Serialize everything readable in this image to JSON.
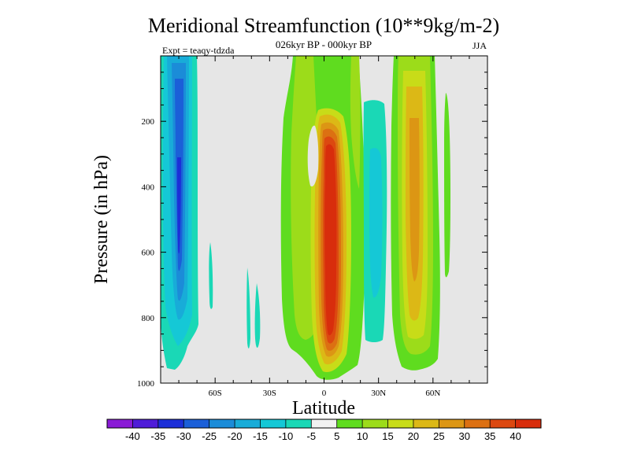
{
  "chart_data": {
    "type": "filled-contour",
    "title": "Meridional Streamfunction (10**9kg/m-2)",
    "subtitle": "026kyr BP - 000kyr BP",
    "experiment": "Expt = teaqy-tdzda",
    "season": "JJA",
    "xlabel": "Latitude",
    "ylabel": "Pressure (in hPa)",
    "xlim": [
      -90,
      90
    ],
    "ylim": [
      1000,
      0
    ],
    "x_ticks": [
      {
        "value": -60,
        "label": "60S"
      },
      {
        "value": -30,
        "label": "30S"
      },
      {
        "value": 0,
        "label": "0"
      },
      {
        "value": 30,
        "label": "30N"
      },
      {
        "value": 60,
        "label": "60N"
      }
    ],
    "y_ticks": [
      {
        "value": 200,
        "label": "200"
      },
      {
        "value": 400,
        "label": "400"
      },
      {
        "value": 600,
        "label": "600"
      },
      {
        "value": 800,
        "label": "800"
      },
      {
        "value": 1000,
        "label": "1000"
      }
    ],
    "background_color": "#e6e6e6",
    "colorbar": {
      "levels": [
        "-40",
        "-35",
        "-30",
        "-25",
        "-20",
        "-15",
        "-10",
        "-5",
        "5",
        "10",
        "15",
        "20",
        "25",
        "30",
        "35",
        "40"
      ],
      "colors": [
        "#8a1bd6",
        "#4f1cd8",
        "#1c2fd8",
        "#1b5fd8",
        "#1b8cd8",
        "#18acd8",
        "#15c8d6",
        "#1ad8b6",
        "#f1f1f1",
        "#5fdc1f",
        "#9cdc1a",
        "#c8dc18",
        "#dcb816",
        "#dc9614",
        "#dc7012",
        "#dc4810",
        "#d82d0c"
      ]
    },
    "features": [
      {
        "name": "sh-negative-band",
        "lat": [
          -90,
          -67
        ],
        "p": [
          20,
          970
        ],
        "min": -35
      },
      {
        "name": "hadley-positive-cell",
        "lat": [
          -13,
          18
        ],
        "p": [
          20,
          985
        ],
        "max": 40
      },
      {
        "name": "nh-positive-band",
        "lat": [
          35,
          58
        ],
        "p": [
          20,
          975
        ],
        "max": 25
      },
      {
        "name": "nh-negative-band",
        "lat": [
          18,
          31
        ],
        "p": [
          80,
          930
        ],
        "min": -15
      }
    ]
  }
}
